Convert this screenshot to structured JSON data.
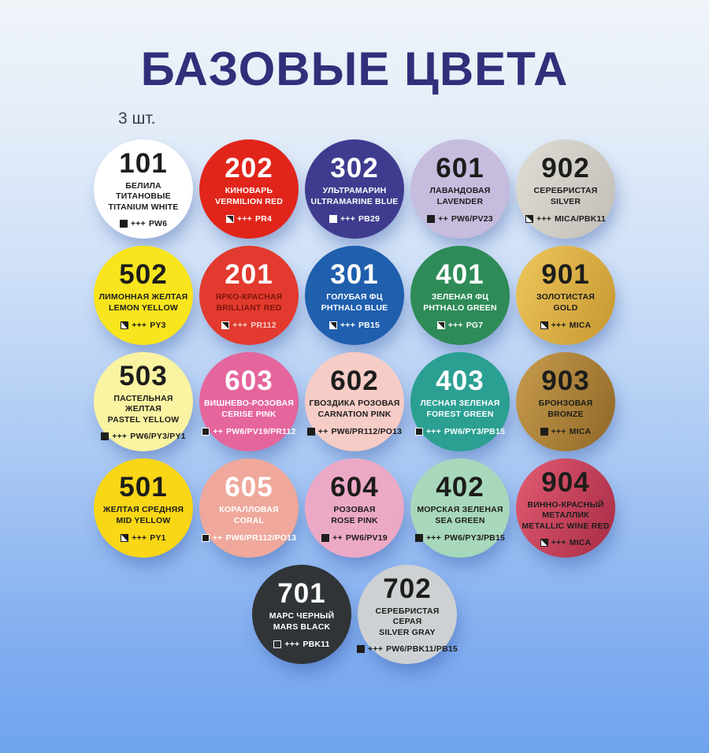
{
  "title": "БАЗОВЫЕ ЦВЕТА",
  "count_label": "3 шт.",
  "theme": {
    "title_color": "#312F7A",
    "count_label_color": "#3B3C46",
    "background_top": "#F0F4F9",
    "background_bottom": "#6FA4EF"
  },
  "rows": [
    [
      {
        "number": "101",
        "name_ru": "БЕЛИЛА ТИТАНОВЫЕ",
        "name_en": "TITANIUM WHITE",
        "rating": "+++",
        "pigment": "PW6",
        "bg": "#FFFFFF",
        "fg": "#1D1D1B",
        "icon": {
          "type": "filled",
          "fill": "#1D1D1B",
          "border": "#1D1D1B"
        }
      },
      {
        "number": "202",
        "name_ru": "КИНОВАРЬ",
        "name_en": "VERMILION RED",
        "rating": "+++",
        "pigment": "PR4",
        "bg": "#E1251B",
        "fg": "#FFFFFF",
        "icon": {
          "type": "half",
          "border": "#FFFFFF"
        }
      },
      {
        "number": "302",
        "name_ru": "УЛЬТРАМАРИН",
        "name_en": "ULTRAMARINE BLUE",
        "rating": "+++",
        "pigment": "PB29",
        "bg": "#3F3C8F",
        "fg": "#FFFFFF",
        "icon": {
          "type": "filled",
          "fill": "#FFFFFF",
          "border": "#FFFFFF"
        }
      },
      {
        "number": "601",
        "name_ru": "ЛАВАНДОВАЯ",
        "name_en": "LAVENDER",
        "rating": "++",
        "pigment": "PW6/PV23",
        "bg": "#C5BCDE",
        "fg": "#1D1D1B",
        "icon": {
          "type": "filled",
          "fill": "#1D1D1B",
          "border": "#1D1D1B"
        }
      },
      {
        "number": "902",
        "name_ru": "СЕРЕБРИСТАЯ",
        "name_en": "SILVER",
        "rating": "+++",
        "pigment": "MICA/PBK11",
        "bg": "#DFDCD5",
        "bg2": "#C2BFB8",
        "fg": "#1D1D1B",
        "icon": {
          "type": "half",
          "border": "#1D1D1B"
        }
      }
    ],
    [
      {
        "number": "502",
        "name_ru": "ЛИМОННАЯ ЖЕЛТАЯ",
        "name_en": "LEMON YELLOW",
        "rating": "+++",
        "pigment": "PY3",
        "bg": "#F8E51D",
        "fg": "#1D1D1B",
        "icon": {
          "type": "half",
          "border": "#1D1D1B"
        }
      },
      {
        "number": "201",
        "name_ru": "ЯРКО-КРАСНАЯ",
        "name_en": "BRILLIANT RED",
        "rating": "+++",
        "pigment": "PR112",
        "bg": "#E23A2E",
        "fg": "#FFFFFF",
        "name_color": "#7D150B",
        "code_color": "#F6D0C8",
        "icon": {
          "type": "half",
          "border": "#FFFFFF"
        }
      },
      {
        "number": "301",
        "name_ru": "ГОЛУБАЯ ФЦ",
        "name_en": "PHTHALO BLUE",
        "rating": "+++",
        "pigment": "PB15",
        "bg": "#1F5FAE",
        "fg": "#FFFFFF",
        "icon": {
          "type": "half",
          "border": "#FFFFFF"
        }
      },
      {
        "number": "401",
        "name_ru": "ЗЕЛЕНАЯ ФЦ",
        "name_en": "PHTHALO GREEN",
        "rating": "+++",
        "pigment": "PG7",
        "bg": "#2E8B57",
        "fg": "#FFFFFF",
        "icon": {
          "type": "half",
          "border": "#FFFFFF"
        }
      },
      {
        "number": "901",
        "name_ru": "ЗОЛОТИСТАЯ",
        "name_en": "GOLD",
        "rating": "+++",
        "pigment": "MICA",
        "bg": "#EDC75B",
        "bg2": "#C79730",
        "fg": "#1D1D1B",
        "icon": {
          "type": "half",
          "border": "#1D1D1B"
        }
      }
    ],
    [
      {
        "number": "503",
        "name_ru": "ПАСТЕЛЬНАЯ ЖЕЛТАЯ",
        "name_en": "PASTEL YELLOW",
        "rating": "+++",
        "pigment": "PW6/PY3/PY1",
        "bg": "#FAF3A2",
        "fg": "#1D1D1B",
        "icon": {
          "type": "filled",
          "fill": "#1D1D1B",
          "border": "#1D1D1B"
        }
      },
      {
        "number": "603",
        "name_ru": "ВИШНЕВО-РОЗОВАЯ",
        "name_en": "CERISE PINK",
        "rating": "++",
        "pigment": "PW6/PV19/PR112",
        "bg": "#E5659D",
        "fg": "#FFFFFF",
        "icon": {
          "type": "filled",
          "fill": "#1D1D1B",
          "border": "#FFFFFF"
        }
      },
      {
        "number": "602",
        "name_ru": "ГВОЗДИКА РОЗОВАЯ",
        "name_en": "CARNATION PINK",
        "rating": "++",
        "pigment": "PW6/PR112/PO13",
        "bg": "#F6CCC6",
        "fg": "#1D1D1B",
        "icon": {
          "type": "filled",
          "fill": "#1D1D1B",
          "border": "#1D1D1B"
        }
      },
      {
        "number": "403",
        "name_ru": "ЛЕСНАЯ ЗЕЛЕНАЯ",
        "name_en": "FOREST GREEN",
        "rating": "+++",
        "pigment": "PW6/PY3/PB15",
        "bg": "#2BA092",
        "fg": "#FFFFFF",
        "icon": {
          "type": "filled",
          "fill": "#1D1D1B",
          "border": "#FFFFFF"
        }
      },
      {
        "number": "903",
        "name_ru": "БРОНЗОВАЯ",
        "name_en": "BRONZE",
        "rating": "+++",
        "pigment": "MICA",
        "bg": "#C89C4F",
        "bg2": "#8F6826",
        "fg": "#1D1D1B",
        "icon": {
          "type": "filled",
          "fill": "#1D1D1B",
          "border": "#1D1D1B"
        }
      }
    ],
    [
      {
        "number": "501",
        "name_ru": "ЖЕЛТАЯ СРЕДНЯЯ",
        "name_en": "MID YELLOW",
        "rating": "+++",
        "pigment": "PY1",
        "bg": "#F9D616",
        "fg": "#1D1D1B",
        "icon": {
          "type": "half",
          "border": "#1D1D1B"
        }
      },
      {
        "number": "605",
        "name_ru": "КОРАЛЛОВАЯ",
        "name_en": "CORAL",
        "rating": "++",
        "pigment": "PW6/PR112/PO13",
        "bg": "#EFA89B",
        "fg": "#FFFFFF",
        "icon": {
          "type": "filled",
          "fill": "#1D1D1B",
          "border": "#FFFFFF"
        }
      },
      {
        "number": "604",
        "name_ru": "РОЗОВАЯ",
        "name_en": "ROSE PINK",
        "rating": "++",
        "pigment": "PW6/PV19",
        "bg": "#ECA9C6",
        "fg": "#1D1D1B",
        "icon": {
          "type": "filled",
          "fill": "#1D1D1B",
          "border": "#1D1D1B"
        }
      },
      {
        "number": "402",
        "name_ru": "МОРСКАЯ ЗЕЛЕНАЯ",
        "name_en": "SEA GREEN",
        "rating": "+++",
        "pigment": "PW6/PY3/PB15",
        "bg": "#A7D8BC",
        "fg": "#1D1D1B",
        "icon": {
          "type": "filled",
          "fill": "#1D1D1B",
          "border": "#1D1D1B"
        }
      },
      {
        "number": "904",
        "name_ru": "ВИННО-КРАСНЫЙ МЕТАЛЛИК",
        "name_en": "METALLIC WINE RED",
        "rating": "+++",
        "pigment": "MICA",
        "bg": "#E25C72",
        "bg2": "#A72B45",
        "fg": "#1D1D1B",
        "icon": {
          "type": "half",
          "border": "#1D1D1B"
        }
      }
    ],
    [
      {
        "number": "701",
        "name_ru": "МАРС ЧЕРНЫЙ",
        "name_en": "MARS BLACK",
        "rating": "+++",
        "pigment": "PBK11",
        "bg": "#303437",
        "fg": "#FFFFFF",
        "icon": {
          "type": "empty",
          "border": "#FFFFFF"
        }
      },
      {
        "number": "702",
        "name_ru": "СЕРЕБРИСТАЯ СЕРАЯ",
        "name_en": "SILVER GRAY",
        "rating": "+++",
        "pigment": "PW6/PBK11/PB15",
        "bg": "#CDD1D3",
        "fg": "#1D1D1B",
        "icon": {
          "type": "filled",
          "fill": "#1D1D1B",
          "border": "#1D1D1B"
        }
      }
    ]
  ]
}
